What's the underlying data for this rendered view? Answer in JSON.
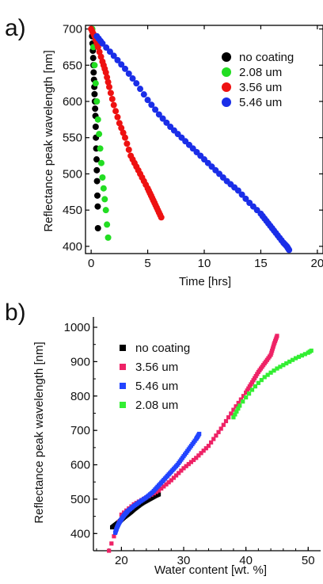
{
  "chart_data": [
    {
      "panel_label": "a)",
      "type": "scatter",
      "xlabel": "Time [hrs]",
      "ylabel": "Reflectance peak wavelength [nm]",
      "xlim": [
        -0.5,
        20.5
      ],
      "ylim": [
        390,
        705
      ],
      "xticks": [
        0,
        5,
        10,
        15,
        20
      ],
      "yticks": [
        400,
        450,
        500,
        550,
        600,
        650,
        700
      ],
      "legend": "top-right",
      "series": [
        {
          "name": "no coating",
          "color": "#000000",
          "x": [
            0.05,
            0.08,
            0.12,
            0.15,
            0.18,
            0.2,
            0.22,
            0.25,
            0.28,
            0.3,
            0.33,
            0.35,
            0.38,
            0.4,
            0.42,
            0.45,
            0.48,
            0.5,
            0.52,
            0.55,
            0.58,
            0.6
          ],
          "y": [
            700,
            690,
            680,
            670,
            660,
            650,
            640,
            630,
            620,
            610,
            600,
            590,
            580,
            565,
            550,
            535,
            520,
            505,
            490,
            470,
            455,
            425
          ]
        },
        {
          "name": "2.08 um",
          "color": "#22dd22",
          "x": [
            0.1,
            0.2,
            0.3,
            0.4,
            0.5,
            0.6,
            0.7,
            0.8,
            0.9,
            1.0,
            1.1,
            1.2,
            1.3,
            1.4,
            1.5
          ],
          "y": [
            700,
            675,
            650,
            625,
            600,
            575,
            555,
            535,
            515,
            495,
            480,
            465,
            450,
            430,
            412
          ]
        },
        {
          "name": "3.56 um",
          "color": "#ee1111",
          "x": [
            0,
            0.3,
            0.6,
            1.0,
            1.3,
            1.6,
            2.0,
            2.5,
            3.0,
            3.5,
            4.0,
            4.5,
            5.0,
            5.3,
            5.6,
            5.9,
            6.2
          ],
          "y": [
            700,
            690,
            675,
            655,
            640,
            620,
            595,
            570,
            550,
            525,
            510,
            495,
            480,
            470,
            460,
            450,
            440
          ]
        },
        {
          "name": "5.46 um",
          "color": "#1a2ee8",
          "x": [
            0.5,
            1,
            2,
            3,
            4,
            5,
            6,
            7,
            8,
            9,
            10,
            11,
            12,
            13,
            14,
            15,
            15.5,
            16,
            16.5,
            17,
            17.3,
            17.5
          ],
          "y": [
            690,
            680,
            663,
            645,
            625,
            602,
            582,
            565,
            550,
            535,
            520,
            505,
            490,
            477,
            460,
            445,
            435,
            425,
            415,
            405,
            400,
            395
          ]
        }
      ]
    },
    {
      "panel_label": "b)",
      "type": "scatter",
      "xlabel": "Water content [wt. %]",
      "ylabel": "Reflectance peak wavelength [nm]",
      "xlim": [
        15.5,
        52
      ],
      "ylim": [
        350,
        1030
      ],
      "xticks": [
        20,
        30,
        40,
        50
      ],
      "yticks": [
        400,
        500,
        600,
        700,
        800,
        900,
        1000
      ],
      "legend": "top-left",
      "series": [
        {
          "name": "no coating",
          "color": "#000000",
          "x": [
            18.5,
            19,
            19.5,
            20,
            20.5,
            21,
            21.5,
            22,
            22.5,
            23,
            23.5,
            24,
            24.5,
            25,
            25.5,
            26
          ],
          "y": [
            418,
            425,
            432,
            440,
            448,
            455,
            462,
            470,
            477,
            484,
            490,
            495,
            500,
            505,
            510,
            514
          ]
        },
        {
          "name": "3.56 um",
          "color": "#ee2266",
          "x": [
            18,
            20,
            22,
            24,
            26,
            28,
            30,
            32,
            34,
            36,
            38,
            40,
            41,
            42,
            43,
            44,
            44.5,
            45
          ],
          "y": [
            350,
            455,
            485,
            505,
            525,
            555,
            590,
            620,
            655,
            705,
            760,
            810,
            840,
            870,
            895,
            920,
            950,
            975
          ]
        },
        {
          "name": "5.46 um",
          "color": "#2244ff",
          "x": [
            19,
            19.3,
            19.6,
            20,
            20.5,
            21,
            22,
            23,
            24,
            25,
            26,
            27,
            28,
            29,
            30,
            31,
            32,
            32.5
          ],
          "y": [
            402,
            418,
            430,
            442,
            455,
            465,
            480,
            493,
            505,
            520,
            540,
            560,
            580,
            600,
            625,
            650,
            675,
            690
          ]
        },
        {
          "name": "2.08 um",
          "color": "#33ee33",
          "x": [
            38,
            38.5,
            39,
            40,
            41,
            42,
            43,
            44,
            45,
            46,
            47,
            48,
            49,
            50,
            50.5
          ],
          "y": [
            738,
            755,
            772,
            796,
            818,
            838,
            855,
            868,
            880,
            890,
            900,
            910,
            918,
            926,
            932
          ]
        }
      ]
    }
  ]
}
